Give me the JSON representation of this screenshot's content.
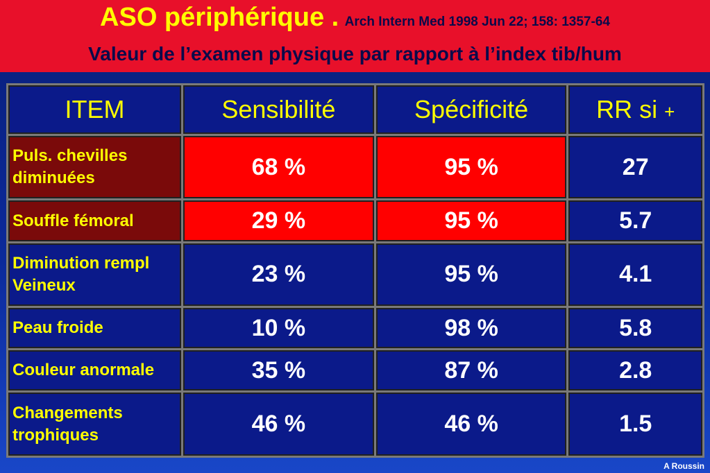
{
  "header": {
    "title": "ASO périphérique .",
    "reference": "Arch Intern Med 1998 Jun 22; 158: 1357-64",
    "subtitle": "Valeur de l’examen physique par rapport à l’index tib/hum"
  },
  "table": {
    "headers": {
      "item": "ITEM",
      "sens": "Sensibilité",
      "spec": "Spécificité",
      "rr": "RR si",
      "rr_plus": "+"
    },
    "rows": [
      {
        "item": "Puls. chevilles diminuées",
        "sens": "68 %",
        "spec": "95 %",
        "rr": "27"
      },
      {
        "item": "Souffle fémoral",
        "sens": "29 %",
        "spec": "95 %",
        "rr": "5.7"
      },
      {
        "item": "Diminution rempl Veineux",
        "sens": "23 %",
        "spec": "95 %",
        "rr": "4.1"
      },
      {
        "item": "Peau froide",
        "sens": "10 %",
        "spec": "98 %",
        "rr": "5.8"
      },
      {
        "item": "Couleur anormale",
        "sens": "35 %",
        "spec": "87 %",
        "rr": "2.8"
      },
      {
        "item": "Changements trophiques",
        "sens": "46 %",
        "spec": "46 %",
        "rr": "1.5"
      }
    ]
  },
  "colors": {
    "header_bg": "#e8102a",
    "highlight": "#ff0000",
    "label_dark": "#7a0a0a",
    "cell_bg": "#0b1a8a",
    "yellow": "#ffff00"
  },
  "footer": {
    "author": "A Roussin"
  }
}
